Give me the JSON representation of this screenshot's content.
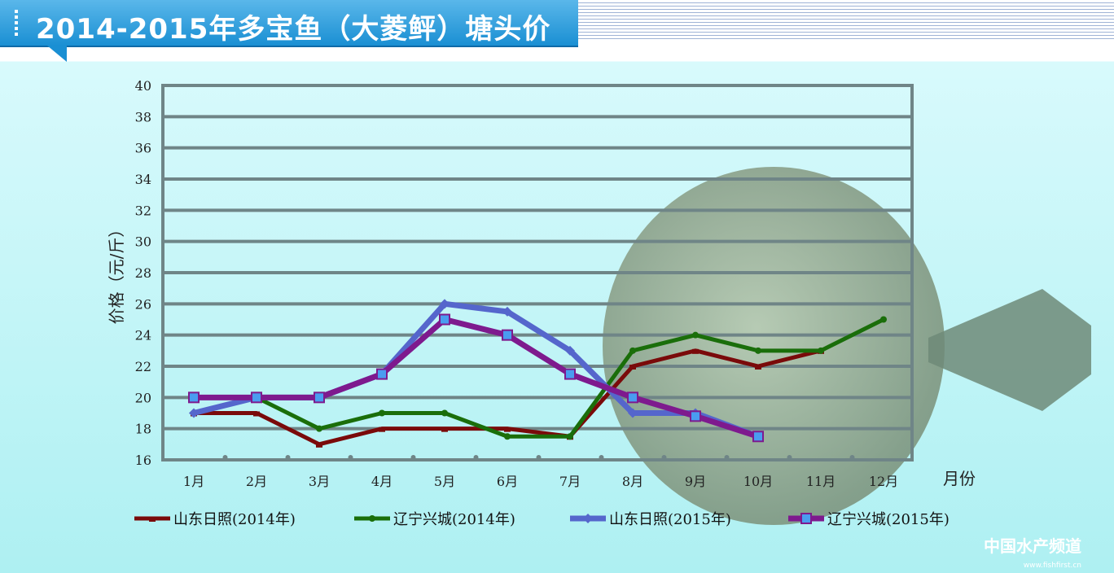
{
  "header": {
    "title": "2014-2015年多宝鱼（大菱鲆）塘头价"
  },
  "watermark": {
    "name": "中国水产频道",
    "url": "www.fishfirst.cn"
  },
  "chart_data": {
    "type": "line",
    "ylabel": "价格（元/斤）",
    "xlabel": "月份",
    "ylim": [
      16,
      40
    ],
    "yticks": [
      16,
      18,
      20,
      22,
      24,
      26,
      28,
      30,
      32,
      34,
      36,
      38,
      40
    ],
    "categories": [
      "1月",
      "2月",
      "3月",
      "4月",
      "5月",
      "6月",
      "7月",
      "8月",
      "9月",
      "10月",
      "11月",
      "12月"
    ],
    "grid": true,
    "legend": "bottom",
    "series": [
      {
        "name": "山东日照(2014年)",
        "color": "#7a0a0a",
        "marker": "dash",
        "values": [
          19,
          19,
          17,
          18,
          18,
          18,
          17.5,
          22,
          23,
          22,
          23,
          null
        ]
      },
      {
        "name": "辽宁兴城(2014年)",
        "color": "#1a6e0a",
        "marker": "circle",
        "values": [
          19,
          20,
          18,
          19,
          19,
          17.5,
          17.5,
          23,
          24,
          23,
          23,
          25
        ]
      },
      {
        "name": "山东日照(2015年)",
        "color": "#5566cc",
        "marker": "diamond",
        "values": [
          19,
          20,
          20,
          21.5,
          26,
          25.5,
          23,
          19,
          19,
          17.5,
          null,
          null
        ]
      },
      {
        "name": "辽宁兴城(2015年)",
        "color": "#7e1a8e",
        "marker": "square",
        "values": [
          20,
          20,
          20,
          21.5,
          25,
          24,
          21.5,
          20,
          18.8,
          17.5,
          null,
          null
        ]
      }
    ]
  }
}
